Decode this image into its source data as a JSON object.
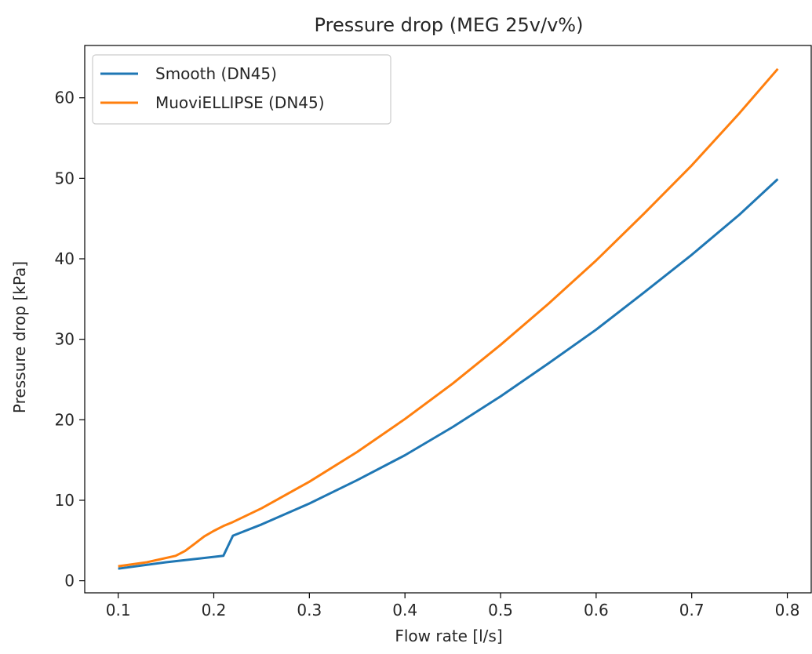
{
  "chart_data": {
    "type": "line",
    "title": "Pressure drop (MEG 25v/v%)",
    "xlabel": "Flow rate [l/s]",
    "ylabel": "Pressure drop [kPa]",
    "xlim": [
      0.065,
      0.825
    ],
    "ylim": [
      -1.5,
      66.5
    ],
    "xticks": [
      0.1,
      0.2,
      0.3,
      0.4,
      0.5,
      0.6,
      0.7,
      0.8
    ],
    "xtick_labels": [
      "0.1",
      "0.2",
      "0.3",
      "0.4",
      "0.5",
      "0.6",
      "0.7",
      "0.8"
    ],
    "yticks": [
      0,
      10,
      20,
      30,
      40,
      50,
      60
    ],
    "ytick_labels": [
      "0",
      "10",
      "20",
      "30",
      "40",
      "50",
      "60"
    ],
    "grid": false,
    "legend_position": "top-left",
    "series": [
      {
        "name": "Smooth (DN45)",
        "color": "#1f77b4",
        "x": [
          0.1,
          0.15,
          0.21,
          0.22,
          0.25,
          0.3,
          0.35,
          0.4,
          0.45,
          0.5,
          0.55,
          0.6,
          0.65,
          0.7,
          0.75,
          0.79
        ],
        "y": [
          1.5,
          2.3,
          3.1,
          5.6,
          7.0,
          9.6,
          12.5,
          15.6,
          19.1,
          22.9,
          27.0,
          31.2,
          35.8,
          40.5,
          45.5,
          49.9
        ]
      },
      {
        "name": "MuoviELLIPSE (DN45)",
        "color": "#ff7f0e",
        "x": [
          0.1,
          0.13,
          0.16,
          0.17,
          0.18,
          0.19,
          0.2,
          0.21,
          0.22,
          0.25,
          0.3,
          0.35,
          0.4,
          0.45,
          0.5,
          0.55,
          0.6,
          0.65,
          0.7,
          0.75,
          0.79
        ],
        "y": [
          1.8,
          2.3,
          3.1,
          3.7,
          4.6,
          5.5,
          6.2,
          6.8,
          7.3,
          9.0,
          12.3,
          16.0,
          20.1,
          24.5,
          29.3,
          34.4,
          39.8,
          45.6,
          51.6,
          58.1,
          63.6
        ]
      }
    ]
  }
}
